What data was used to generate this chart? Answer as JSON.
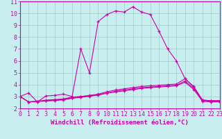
{
  "xlabel": "Windchill (Refroidissement éolien,°C)",
  "bg_color": "#c8eef0",
  "grid_color": "#a0ccc8",
  "line_color": "#cc00aa",
  "xlim": [
    0,
    23
  ],
  "ylim": [
    2,
    11
  ],
  "xticks": [
    0,
    1,
    2,
    3,
    4,
    5,
    6,
    7,
    8,
    9,
    10,
    11,
    12,
    13,
    14,
    15,
    16,
    17,
    18,
    19,
    20,
    21,
    22,
    23
  ],
  "yticks": [
    2,
    3,
    4,
    5,
    6,
    7,
    8,
    9,
    10,
    11
  ],
  "line1_x": [
    0,
    1,
    2,
    3,
    4,
    5,
    6,
    7,
    8,
    9,
    10,
    11,
    12,
    13,
    14,
    15,
    16,
    17,
    18,
    19,
    20,
    21,
    22,
    23
  ],
  "line1_y": [
    3.0,
    3.3,
    2.55,
    3.05,
    3.1,
    3.2,
    3.0,
    7.0,
    5.0,
    9.3,
    9.9,
    10.2,
    10.1,
    10.55,
    10.1,
    9.9,
    8.5,
    7.0,
    6.0,
    4.5,
    3.85,
    2.7,
    2.65,
    2.65
  ],
  "line2_x": [
    0,
    1,
    2,
    3,
    4,
    5,
    6,
    7,
    8,
    9,
    10,
    11,
    12,
    13,
    14,
    15,
    16,
    17,
    18,
    19,
    20,
    21,
    22,
    23
  ],
  "line2_y": [
    3.0,
    2.55,
    2.6,
    2.7,
    2.75,
    2.8,
    2.95,
    3.0,
    3.1,
    3.2,
    3.4,
    3.55,
    3.65,
    3.75,
    3.85,
    3.9,
    3.95,
    4.0,
    4.05,
    4.5,
    3.8,
    2.7,
    2.65,
    2.65
  ],
  "line3_x": [
    0,
    1,
    2,
    3,
    4,
    5,
    6,
    7,
    8,
    9,
    10,
    11,
    12,
    13,
    14,
    15,
    16,
    17,
    18,
    19,
    20,
    21,
    22,
    23
  ],
  "line3_y": [
    3.0,
    2.55,
    2.6,
    2.65,
    2.7,
    2.75,
    2.9,
    3.0,
    3.05,
    3.15,
    3.3,
    3.45,
    3.55,
    3.65,
    3.75,
    3.8,
    3.85,
    3.9,
    3.95,
    4.3,
    3.7,
    2.65,
    2.6,
    2.6
  ],
  "line4_x": [
    0,
    1,
    2,
    3,
    4,
    5,
    6,
    7,
    8,
    9,
    10,
    11,
    12,
    13,
    14,
    15,
    16,
    17,
    18,
    19,
    20,
    21,
    22,
    23
  ],
  "line4_y": [
    3.0,
    2.55,
    2.58,
    2.62,
    2.66,
    2.72,
    2.85,
    2.93,
    3.02,
    3.12,
    3.28,
    3.38,
    3.48,
    3.58,
    3.68,
    3.75,
    3.8,
    3.85,
    3.9,
    4.2,
    3.6,
    2.6,
    2.55,
    2.55
  ],
  "xlabel_fontsize": 6.5,
  "tick_fontsize": 6
}
